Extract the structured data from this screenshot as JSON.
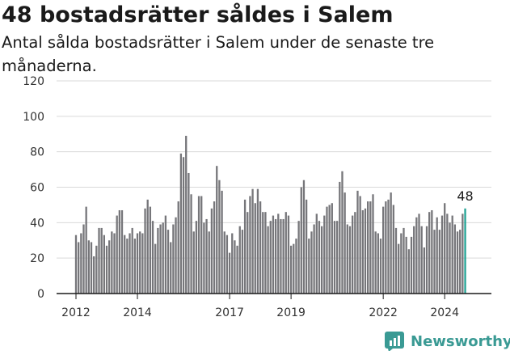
{
  "header": {
    "title": "48 bostadsrätter såldes i Salem",
    "subtitle": "Antal sålda bostadsrätter i Salem under de senaste tre månaderna."
  },
  "brand": {
    "logo_text": "Newsworthy",
    "logo_icon": "bar-chart-logo-icon",
    "color": "#3a9a94"
  },
  "chart_data": {
    "type": "bar",
    "ylim": [
      0,
      120
    ],
    "yticks": [
      0,
      20,
      40,
      60,
      80,
      100,
      120
    ],
    "xtick_labels": [
      {
        "label": "2012",
        "index": 0
      },
      {
        "label": "2014",
        "index": 24
      },
      {
        "label": "2017",
        "index": 60
      },
      {
        "label": "2019",
        "index": 84
      },
      {
        "label": "2022",
        "index": 120
      },
      {
        "label": "2024",
        "index": 144
      }
    ],
    "bar_color": "#76767a",
    "highlight_color": "#21a294",
    "highlight_label": "48",
    "grid": true,
    "values": [
      33,
      29,
      34,
      39,
      49,
      30,
      29,
      21,
      27,
      37,
      37,
      33,
      27,
      30,
      35,
      34,
      44,
      47,
      47,
      33,
      31,
      34,
      37,
      31,
      34,
      35,
      34,
      48,
      53,
      49,
      41,
      28,
      37,
      39,
      40,
      44,
      36,
      29,
      39,
      43,
      52,
      79,
      77,
      89,
      68,
      56,
      35,
      41,
      55,
      55,
      40,
      42,
      35,
      48,
      52,
      72,
      64,
      58,
      35,
      33,
      23,
      34,
      30,
      27,
      38,
      36,
      53,
      46,
      55,
      59,
      51,
      59,
      52,
      46,
      46,
      38,
      41,
      44,
      42,
      45,
      42,
      42,
      46,
      44,
      27,
      28,
      31,
      41,
      60,
      64,
      53,
      31,
      35,
      39,
      45,
      41,
      38,
      44,
      49,
      50,
      51,
      41,
      41,
      63,
      69,
      57,
      39,
      38,
      44,
      46,
      58,
      55,
      47,
      48,
      52,
      52,
      56,
      35,
      34,
      31,
      49,
      52,
      53,
      57,
      50,
      37,
      28,
      34,
      37,
      32,
      25,
      32,
      38,
      43,
      45,
      38,
      26,
      38,
      46,
      47,
      36,
      43,
      36,
      44,
      51,
      45,
      40,
      44,
      39,
      35,
      36,
      45,
      48
    ]
  }
}
